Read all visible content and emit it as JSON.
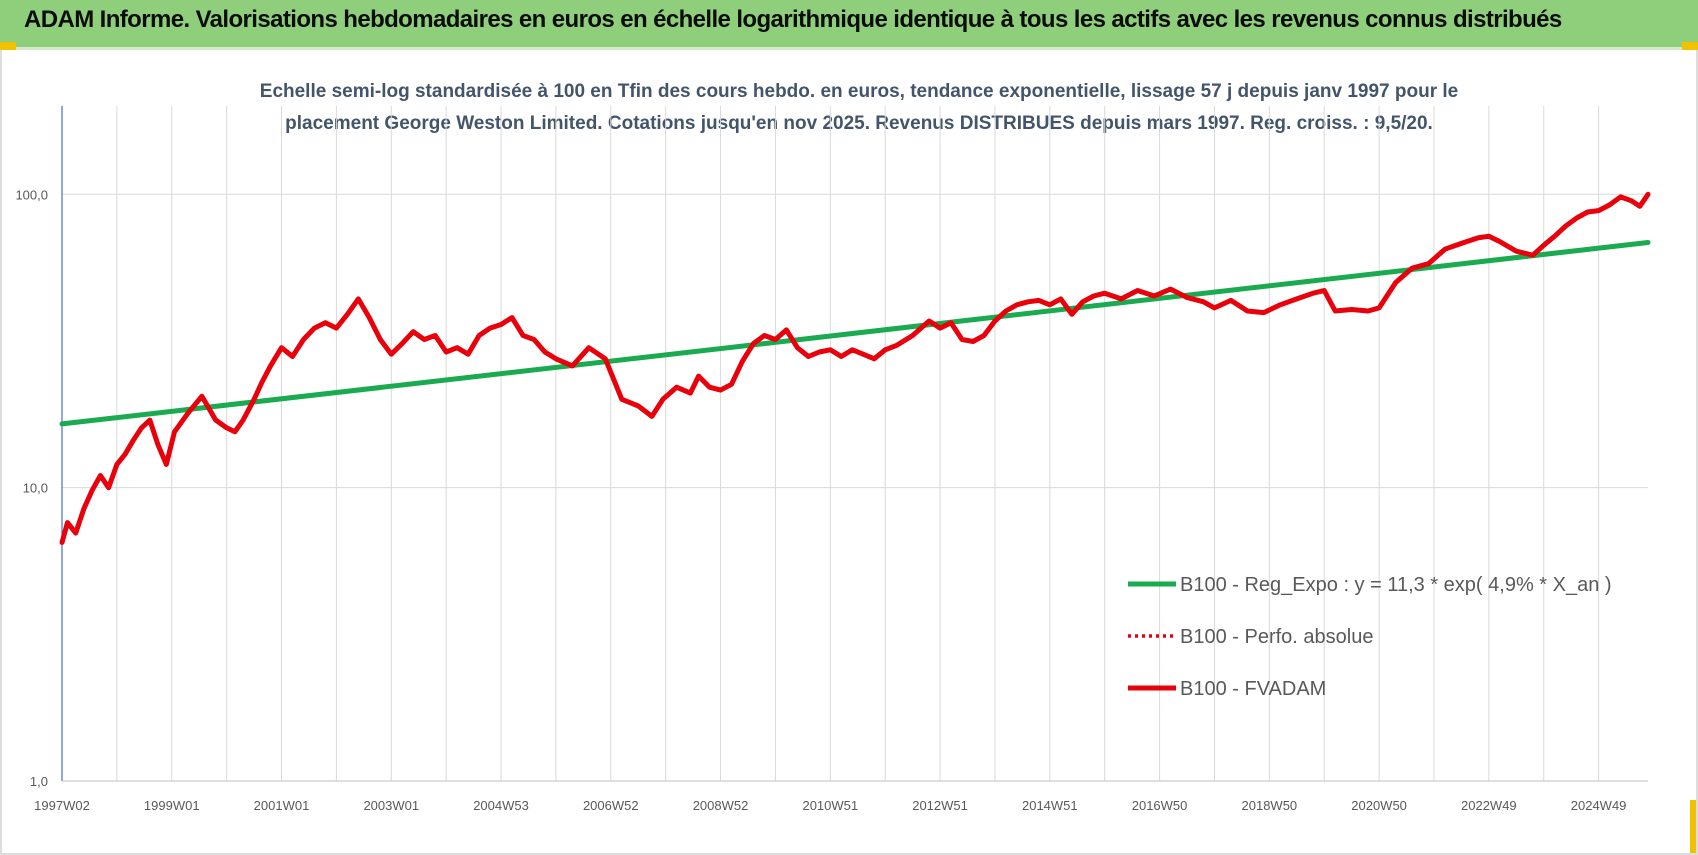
{
  "header": {
    "title": "ADAM Informe. Valorisations hebdomadaires en euros en échelle logarithmique identique à tous les actifs avec les revenus connus distribués"
  },
  "colors": {
    "header_bg": "#8fcf7c",
    "accent_corner": "#f2c200",
    "trend_line": "#1aaa50",
    "fvadam_line": "#e8000a",
    "grid": "#d9d9d9",
    "y_axis": "#4472c4"
  },
  "chart_data": {
    "type": "line",
    "title_line1": "Echelle semi-log standardisée à 100 en Tfin des cours hebdo. en euros, tendance exponentielle, lissage 57 j depuis janv 1997 pour le",
    "title_line2": "placement George Weston Limited. Cotations jusqu'en nov 2025. Revenus DISTRIBUES depuis mars 1997. Reg. croiss. : 9,5/20.",
    "y_scale": "log",
    "ylim": [
      1,
      200
    ],
    "y_ticks": [
      {
        "value": 1,
        "label": "1,0"
      },
      {
        "value": 10,
        "label": "10,0"
      },
      {
        "value": 100,
        "label": "100,0"
      }
    ],
    "xlim": [
      1997.0,
      2025.9
    ],
    "x_ticks": [
      {
        "value": 1997.0,
        "label": "1997W02"
      },
      {
        "value": 1999.0,
        "label": "1999W01"
      },
      {
        "value": 2001.0,
        "label": "2001W01"
      },
      {
        "value": 2003.0,
        "label": "2003W01"
      },
      {
        "value": 2005.0,
        "label": "2004W53"
      },
      {
        "value": 2007.0,
        "label": "2006W52"
      },
      {
        "value": 2009.0,
        "label": "2008W52"
      },
      {
        "value": 2011.0,
        "label": "2010W51"
      },
      {
        "value": 2013.0,
        "label": "2012W51"
      },
      {
        "value": 2015.0,
        "label": "2014W51"
      },
      {
        "value": 2017.0,
        "label": "2016W50"
      },
      {
        "value": 2019.0,
        "label": "2018W50"
      },
      {
        "value": 2021.0,
        "label": "2020W50"
      },
      {
        "value": 2023.0,
        "label": "2022W49"
      },
      {
        "value": 2025.0,
        "label": "2024W49"
      }
    ],
    "grid": true,
    "legend_position": "bottom-right",
    "series": [
      {
        "name": "B100 - Reg_Expo : y = 11,3 * exp( 4,9% *  X_an )",
        "color": "#1aaa50",
        "style": "solid",
        "x": [
          1997.0,
          2025.9
        ],
        "y": [
          16.5,
          68.5
        ]
      },
      {
        "name": "B100 - Perfo. absolue",
        "color": "#e8000a",
        "style": "dotted",
        "x": [],
        "y": []
      },
      {
        "name": "B100 - FVADAM",
        "color": "#e8000a",
        "style": "solid",
        "x": [
          1997.0,
          1997.1,
          1997.25,
          1997.4,
          1997.55,
          1997.7,
          1997.85,
          1998.0,
          1998.15,
          1998.3,
          1998.45,
          1998.6,
          1998.75,
          1998.9,
          1999.05,
          1999.3,
          1999.55,
          1999.8,
          2000.0,
          2000.15,
          2000.3,
          2000.5,
          2000.65,
          2000.8,
          2001.0,
          2001.2,
          2001.4,
          2001.6,
          2001.8,
          2002.0,
          2002.2,
          2002.4,
          2002.6,
          2002.8,
          2003.0,
          2003.2,
          2003.4,
          2003.6,
          2003.8,
          2004.0,
          2004.2,
          2004.4,
          2004.6,
          2004.8,
          2005.0,
          2005.2,
          2005.4,
          2005.6,
          2005.8,
          2006.0,
          2006.3,
          2006.6,
          2006.9,
          2007.2,
          2007.5,
          2007.75,
          2007.95,
          2008.2,
          2008.45,
          2008.6,
          2008.8,
          2009.0,
          2009.2,
          2009.4,
          2009.6,
          2009.8,
          2010.0,
          2010.2,
          2010.4,
          2010.6,
          2010.8,
          2011.0,
          2011.2,
          2011.4,
          2011.6,
          2011.8,
          2012.0,
          2012.2,
          2012.5,
          2012.8,
          2013.0,
          2013.2,
          2013.4,
          2013.6,
          2013.8,
          2014.0,
          2014.2,
          2014.4,
          2014.6,
          2014.8,
          2015.0,
          2015.2,
          2015.4,
          2015.6,
          2015.8,
          2016.0,
          2016.3,
          2016.6,
          2016.9,
          2017.2,
          2017.5,
          2017.8,
          2018.0,
          2018.3,
          2018.6,
          2018.9,
          2019.2,
          2019.5,
          2019.8,
          2020.0,
          2020.2,
          2020.5,
          2020.8,
          2021.0,
          2021.3,
          2021.6,
          2021.9,
          2022.2,
          2022.5,
          2022.8,
          2023.0,
          2023.2,
          2023.5,
          2023.8,
          2024.0,
          2024.2,
          2024.4,
          2024.6,
          2024.8,
          2025.0,
          2025.2,
          2025.4,
          2025.6,
          2025.75,
          2025.9
        ],
        "y": [
          6.5,
          7.6,
          7.0,
          8.5,
          9.8,
          11.0,
          10.0,
          12.0,
          13.0,
          14.5,
          16.0,
          17.0,
          14.0,
          12.0,
          15.5,
          18.0,
          20.5,
          17.0,
          16.0,
          15.5,
          17.0,
          20.0,
          23.0,
          26.0,
          30.0,
          28.0,
          32.0,
          35.0,
          36.5,
          35.0,
          39.0,
          44.0,
          38.0,
          32.0,
          28.5,
          31.0,
          34.0,
          32.0,
          33.0,
          29.0,
          30.0,
          28.5,
          33.0,
          35.0,
          36.0,
          38.0,
          33.0,
          32.0,
          29.0,
          27.5,
          26.0,
          30.0,
          27.5,
          20.0,
          19.0,
          17.5,
          20.0,
          22.0,
          21.0,
          24.0,
          22.0,
          21.5,
          22.5,
          27.0,
          31.0,
          33.0,
          32.0,
          34.5,
          30.0,
          28.0,
          29.0,
          29.5,
          28.0,
          29.5,
          28.5,
          27.5,
          29.5,
          30.5,
          33.0,
          37.0,
          35.0,
          36.5,
          32.0,
          31.5,
          33.0,
          37.0,
          40.0,
          42.0,
          43.0,
          43.5,
          42.0,
          44.0,
          39.0,
          43.0,
          45.0,
          46.0,
          44.0,
          47.0,
          45.0,
          47.5,
          44.5,
          43.0,
          41.0,
          43.5,
          40.0,
          39.5,
          42.0,
          44.0,
          46.0,
          47.0,
          40.0,
          40.5,
          40.0,
          41.0,
          50.0,
          56.0,
          58.0,
          65.0,
          68.0,
          71.0,
          72.0,
          69.0,
          64.0,
          62.0,
          67.0,
          72.0,
          78.0,
          83.0,
          87.0,
          88.0,
          92.0,
          98.0,
          95.0,
          91.0,
          100.0
        ]
      }
    ]
  }
}
